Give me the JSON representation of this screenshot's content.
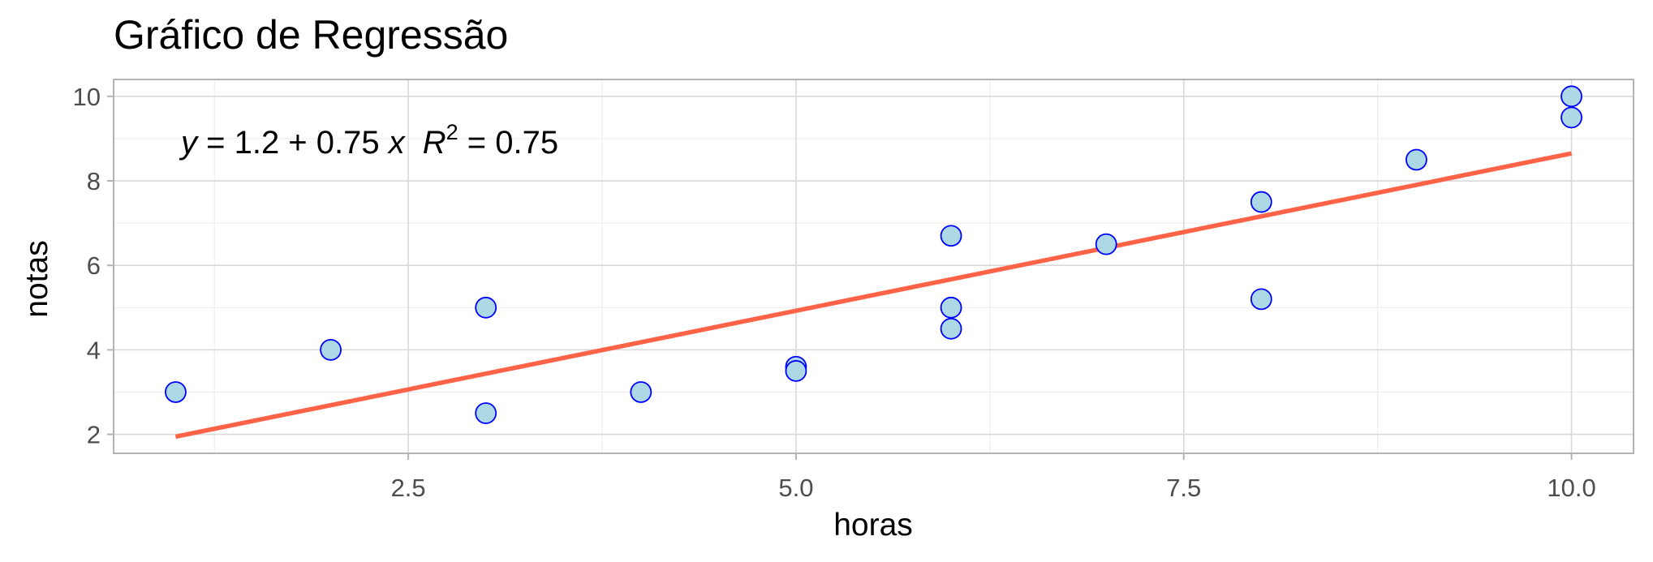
{
  "chart_data": {
    "type": "scatter",
    "title": "Gráfico  de Regressão",
    "xlabel": "horas",
    "ylabel": "notas",
    "xlim": [
      0.6,
      10.4
    ],
    "ylim": [
      1.55,
      10.4
    ],
    "x_ticks": [
      2.5,
      5.0,
      7.5,
      10.0
    ],
    "x_tick_labels": [
      "2.5",
      "5.0",
      "7.5",
      "10.0"
    ],
    "y_ticks": [
      2,
      4,
      6,
      8,
      10
    ],
    "y_tick_labels": [
      "2",
      "4",
      "6",
      "8",
      "10"
    ],
    "grid": true,
    "points": [
      {
        "x": 1,
        "y": 3.0
      },
      {
        "x": 2,
        "y": 4.0
      },
      {
        "x": 3,
        "y": 5.0
      },
      {
        "x": 3,
        "y": 2.5
      },
      {
        "x": 4,
        "y": 3.0
      },
      {
        "x": 5,
        "y": 3.6
      },
      {
        "x": 5,
        "y": 3.5
      },
      {
        "x": 6,
        "y": 6.7
      },
      {
        "x": 6,
        "y": 5.0
      },
      {
        "x": 6,
        "y": 4.5
      },
      {
        "x": 7,
        "y": 6.5
      },
      {
        "x": 8,
        "y": 7.5
      },
      {
        "x": 8,
        "y": 5.2
      },
      {
        "x": 9,
        "y": 8.5
      },
      {
        "x": 10,
        "y": 10.0
      },
      {
        "x": 10,
        "y": 9.5
      }
    ],
    "regression": {
      "intercept": 1.2,
      "slope": 0.745,
      "x_range": [
        1,
        10
      ]
    },
    "annotation": {
      "y_var": "y",
      "eq_body": " = 1.2 + 0.75 ",
      "x_var": "x",
      "r_var": "R",
      "r_exp": "2",
      "r_val": " = 0.75"
    },
    "colors": {
      "point_fill": "#add8e6",
      "point_stroke": "#0000ff",
      "line": "#ff6347"
    }
  }
}
